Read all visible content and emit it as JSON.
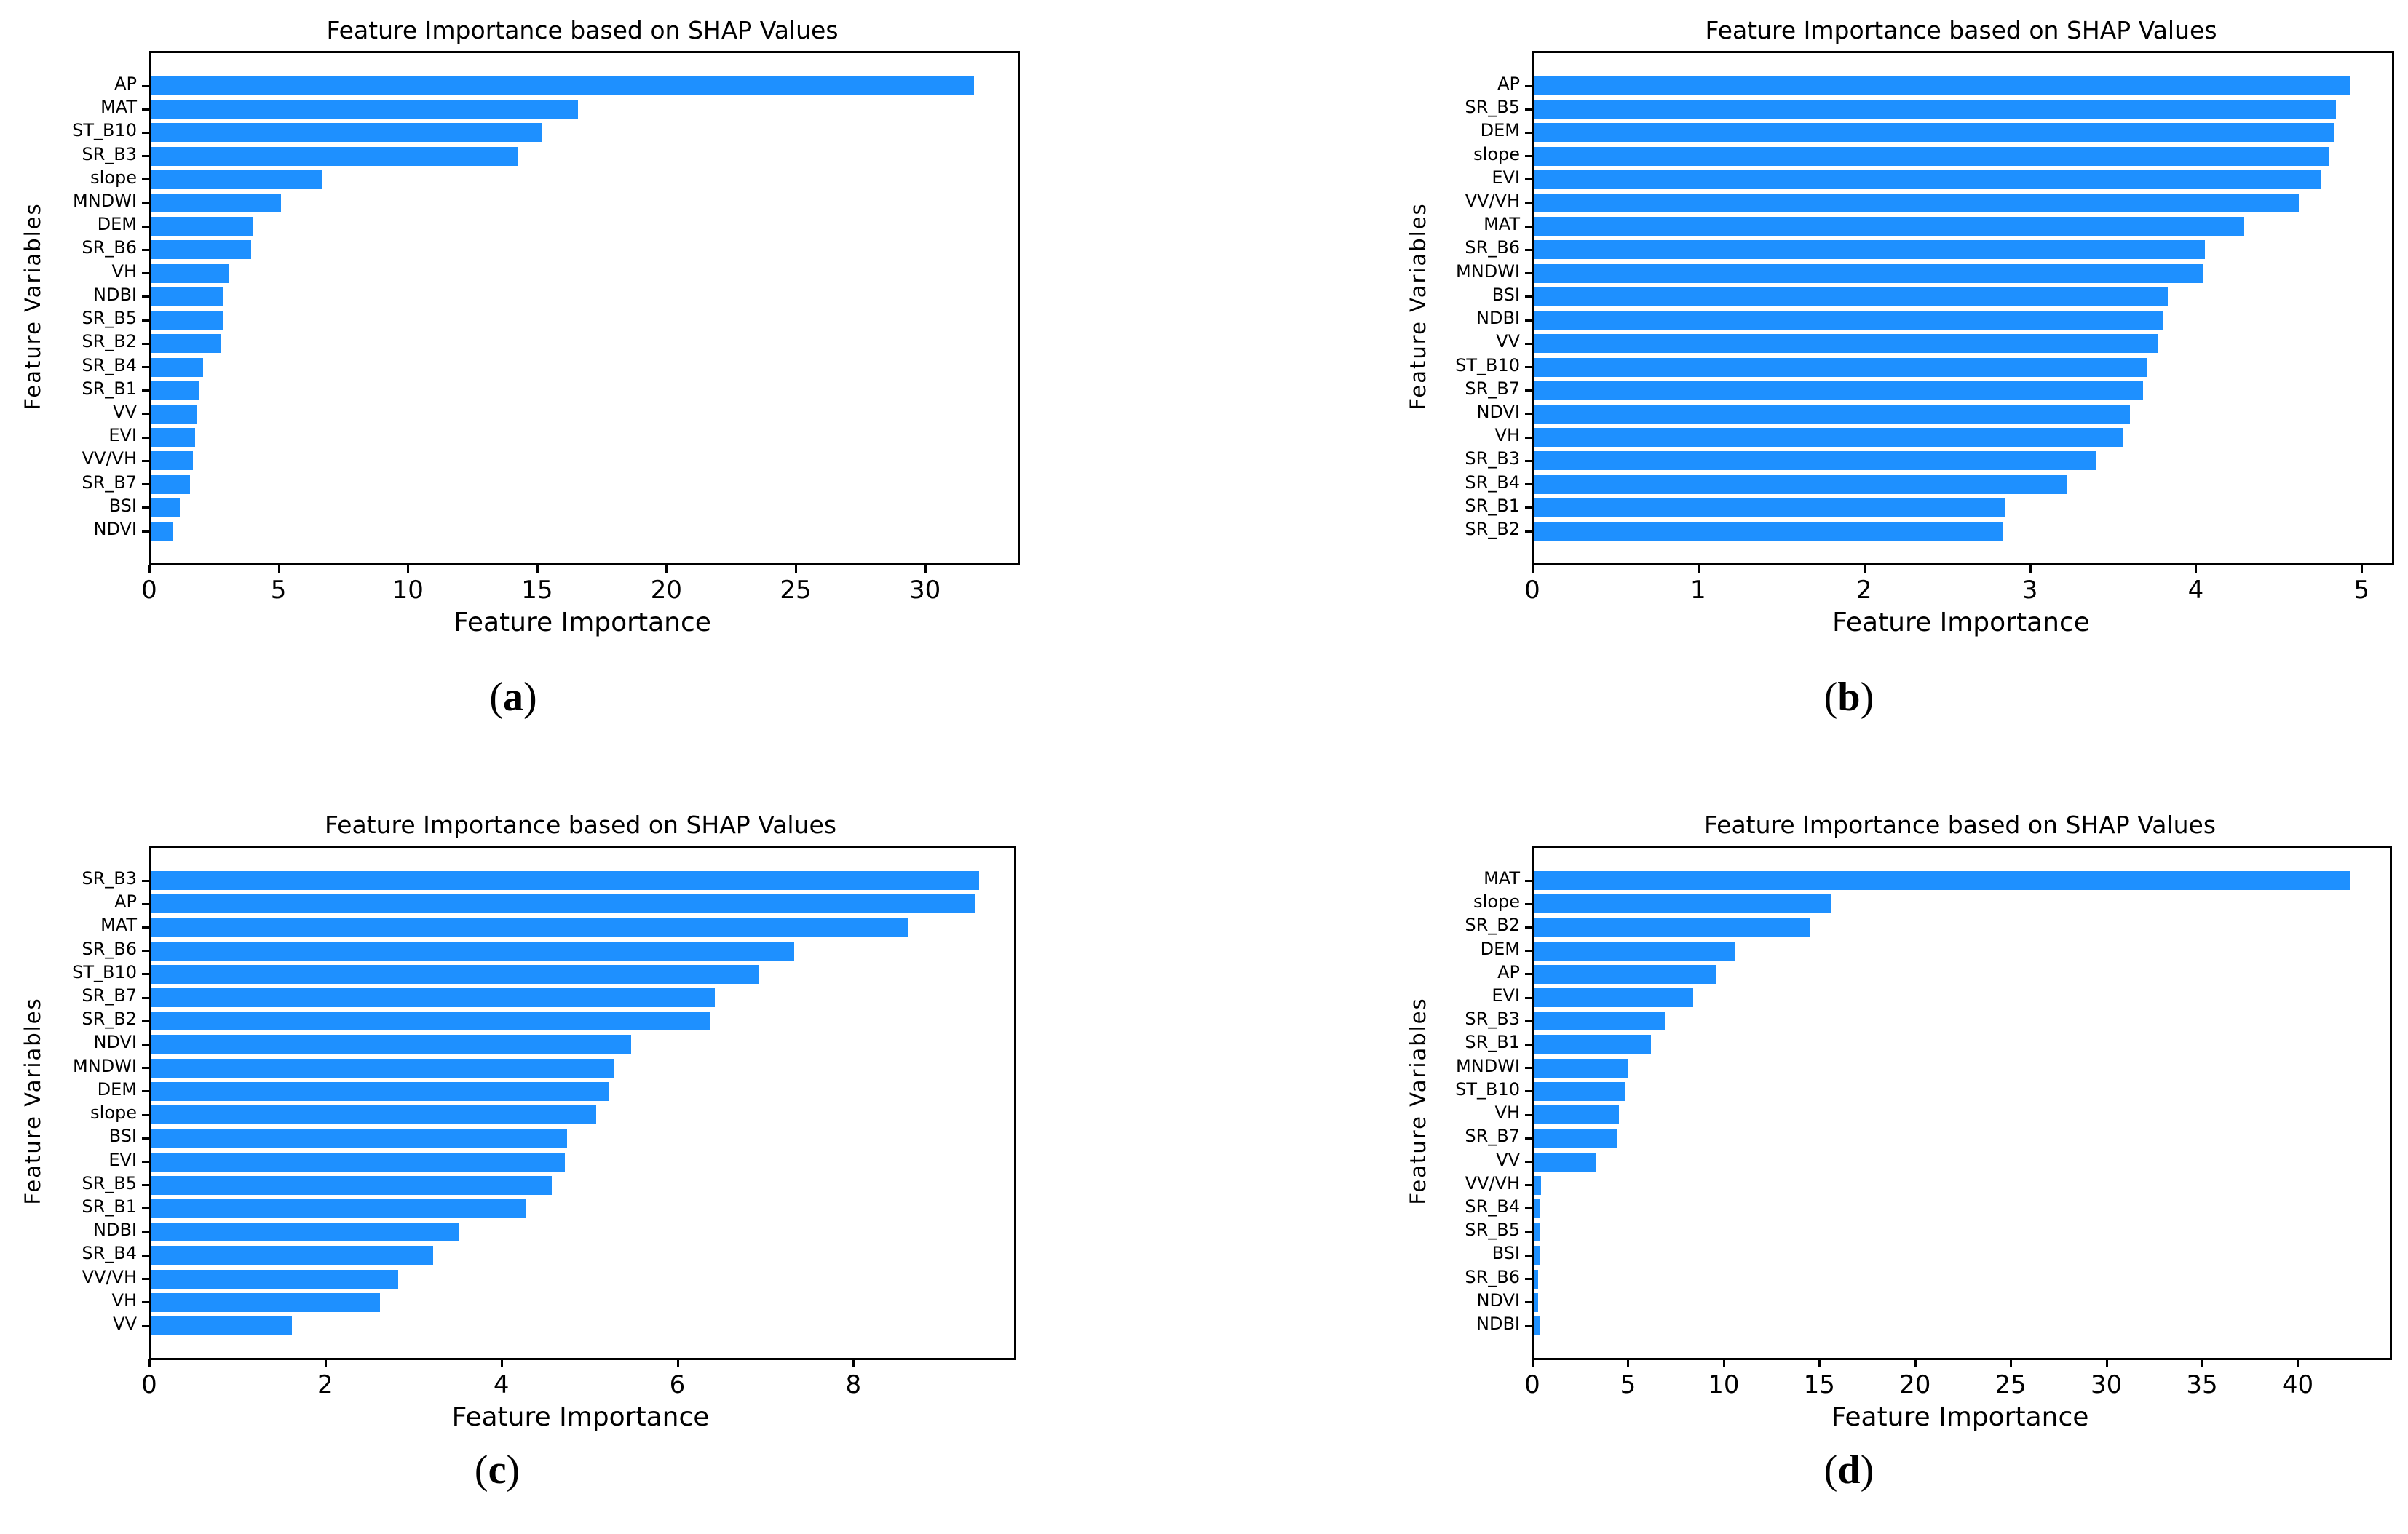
{
  "figure": {
    "background": "#ffffff",
    "bar_color": "#1E90FF",
    "axis_color": "#000000"
  },
  "chart_data": [
    {
      "id": "a",
      "type": "bar",
      "orientation": "horizontal",
      "title": "Feature Importance based on SHAP Values",
      "xlabel": "Feature Importance",
      "ylabel": "Feature Variables",
      "caption": {
        "open": "(",
        "letter": "a",
        "close": ")"
      },
      "categories": [
        "AP",
        "MAT",
        "ST_B10",
        "SR_B3",
        "slope",
        "MNDWI",
        "DEM",
        "SR_B6",
        "VH",
        "NDBI",
        "SR_B5",
        "SR_B2",
        "SR_B4",
        "SR_B1",
        "VV",
        "EVI",
        "VV/VH",
        "SR_B7",
        "BSI",
        "NDVI"
      ],
      "values": [
        31.8,
        16.5,
        15.1,
        14.2,
        6.6,
        5.0,
        3.9,
        3.85,
        3.0,
        2.8,
        2.75,
        2.7,
        2.0,
        1.85,
        1.75,
        1.7,
        1.6,
        1.5,
        1.1,
        0.85
      ],
      "xticks": [
        0,
        5,
        10,
        15,
        20,
        25,
        30
      ],
      "xlim": [
        0,
        33.5
      ],
      "grid": false,
      "legend": null
    },
    {
      "id": "b",
      "type": "bar",
      "orientation": "horizontal",
      "title": "Feature Importance based on SHAP Values",
      "xlabel": "Feature Importance",
      "ylabel": "Feature Variables",
      "caption": {
        "open": "(",
        "letter": "b",
        "close": ")"
      },
      "categories": [
        "AP",
        "SR_B5",
        "DEM",
        "slope",
        "EVI",
        "VV/VH",
        "MAT",
        "SR_B6",
        "MNDWI",
        "BSI",
        "NDBI",
        "VV",
        "ST_B10",
        "SR_B7",
        "NDVI",
        "VH",
        "SR_B3",
        "SR_B4",
        "SR_B1",
        "SR_B2"
      ],
      "values": [
        4.92,
        4.83,
        4.82,
        4.79,
        4.74,
        4.61,
        4.28,
        4.04,
        4.03,
        3.82,
        3.79,
        3.76,
        3.69,
        3.67,
        3.59,
        3.55,
        3.39,
        3.21,
        2.84,
        2.82
      ],
      "xticks": [
        0,
        1,
        2,
        3,
        4,
        5
      ],
      "xlim": [
        0,
        5.17
      ],
      "grid": false,
      "legend": null
    },
    {
      "id": "c",
      "type": "bar",
      "orientation": "horizontal",
      "title": "Feature Importance based on SHAP Values",
      "xlabel": "Feature Importance",
      "ylabel": "Feature Variables",
      "caption": {
        "open": "(",
        "letter": "c",
        "close": ")"
      },
      "categories": [
        "SR_B3",
        "AP",
        "MAT",
        "SR_B6",
        "ST_B10",
        "SR_B7",
        "SR_B2",
        "NDVI",
        "MNDWI",
        "DEM",
        "slope",
        "BSI",
        "EVI",
        "SR_B5",
        "SR_B1",
        "NDBI",
        "SR_B4",
        "VV/VH",
        "VH",
        "VV"
      ],
      "values": [
        9.4,
        9.35,
        8.6,
        7.3,
        6.9,
        6.4,
        6.35,
        5.45,
        5.25,
        5.2,
        5.05,
        4.72,
        4.7,
        4.55,
        4.25,
        3.5,
        3.2,
        2.8,
        2.6,
        1.6
      ],
      "xticks": [
        0,
        2,
        4,
        6,
        8
      ],
      "xlim": [
        0,
        9.8
      ],
      "grid": false,
      "legend": null
    },
    {
      "id": "d",
      "type": "bar",
      "orientation": "horizontal",
      "title": "Feature Importance based on SHAP Values",
      "xlabel": "Feature Importance",
      "ylabel": "Feature Variables",
      "caption": {
        "open": "(",
        "letter": "d",
        "close": ")"
      },
      "categories": [
        "MAT",
        "slope",
        "SR_B2",
        "DEM",
        "AP",
        "EVI",
        "SR_B3",
        "SR_B1",
        "MNDWI",
        "ST_B10",
        "VH",
        "SR_B7",
        "VV",
        "VV/VH",
        "SR_B4",
        "SR_B5",
        "BSI",
        "SR_B6",
        "NDVI",
        "NDBI"
      ],
      "values": [
        42.6,
        15.5,
        14.4,
        10.5,
        9.5,
        8.3,
        6.8,
        6.1,
        4.9,
        4.75,
        4.4,
        4.3,
        3.2,
        0.35,
        0.3,
        0.25,
        0.3,
        0.2,
        0.2,
        0.25
      ],
      "xticks": [
        0,
        5,
        10,
        15,
        20,
        25,
        30,
        35,
        40
      ],
      "xlim": [
        0,
        44.7
      ],
      "grid": false,
      "legend": null
    }
  ]
}
